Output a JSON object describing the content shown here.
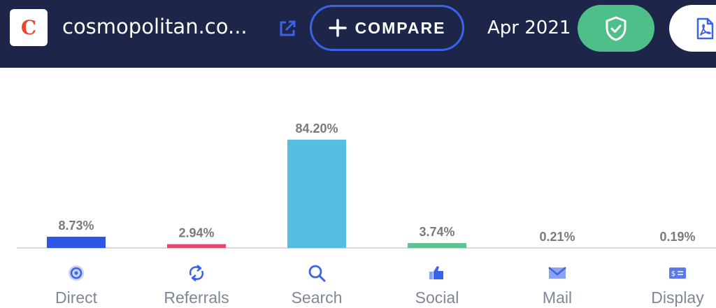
{
  "header": {
    "logo_letter": "C",
    "site_name": "cosmopolitan.co...",
    "compare_label": "COMPARE",
    "date": "Apr 2021"
  },
  "colors": {
    "header_bg": "#1d2548",
    "compare_border": "#3b62e8",
    "verified_green": "#4fbf8a",
    "logo_red": "#e8462c"
  },
  "icons": {
    "ext_link": "external-link-icon",
    "compare": "plus-icon",
    "verify": "shield-check-icon",
    "pdf": "pdf-icon"
  },
  "chart_data": {
    "type": "bar",
    "categories": [
      "Direct",
      "Referrals",
      "Search",
      "Social",
      "Mail",
      "Display"
    ],
    "values": [
      8.73,
      2.94,
      84.2,
      3.74,
      0.21,
      0.19
    ],
    "value_labels": [
      "8.73%",
      "2.94%",
      "84.20%",
      "3.74%",
      "0.21%",
      "0.19%"
    ],
    "colors": [
      "#2f55e4",
      "#e2486f",
      "#54bde0",
      "#5cc28f",
      "#4c6ee6",
      "#4c6ee6"
    ],
    "category_icons": [
      "direct-icon",
      "referrals-icon",
      "search-icon",
      "social-icon",
      "mail-icon",
      "display-icon"
    ],
    "ylim": [
      0,
      100
    ],
    "grid": false,
    "legend": "none"
  }
}
